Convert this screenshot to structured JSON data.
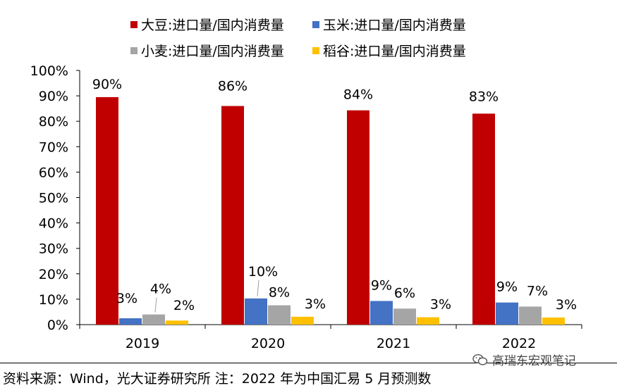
{
  "chart_data": {
    "type": "bar",
    "categories": [
      "2019",
      "2020",
      "2021",
      "2022"
    ],
    "series": [
      {
        "name": "大豆:进口量/国内消费量",
        "color": "#C00000",
        "values": [
          89.5,
          86,
          84.3,
          83
        ],
        "labels": [
          "90%",
          "86%",
          "84%",
          "83%"
        ]
      },
      {
        "name": "玉米:进口量/国内消费量",
        "color": "#4472C4",
        "values": [
          2.5,
          10.3,
          9.3,
          8.7
        ],
        "labels": [
          "3%",
          "10%",
          "9%",
          "9%"
        ]
      },
      {
        "name": "小麦:进口量/国内消费量",
        "color": "#A5A5A5",
        "values": [
          4.0,
          7.6,
          6.3,
          7.1
        ],
        "labels": [
          "4%",
          "8%",
          "6%",
          "7%"
        ]
      },
      {
        "name": "稻谷:进口量/国内消费量",
        "color": "#FFC000",
        "values": [
          1.6,
          3.1,
          2.9,
          2.8
        ],
        "labels": [
          "2%",
          "3%",
          "3%",
          "3%"
        ]
      }
    ],
    "ylim": [
      0,
      100
    ],
    "yticks": [
      "0%",
      "10%",
      "20%",
      "30%",
      "40%",
      "50%",
      "60%",
      "70%",
      "80%",
      "90%",
      "100%"
    ],
    "grid": false,
    "legend_position": "top"
  },
  "source_note": "资料来源：Wind，光大证券研究所 注：2022 年为中国汇易 5 月预测数",
  "watermark": "高瑞东宏观笔记"
}
